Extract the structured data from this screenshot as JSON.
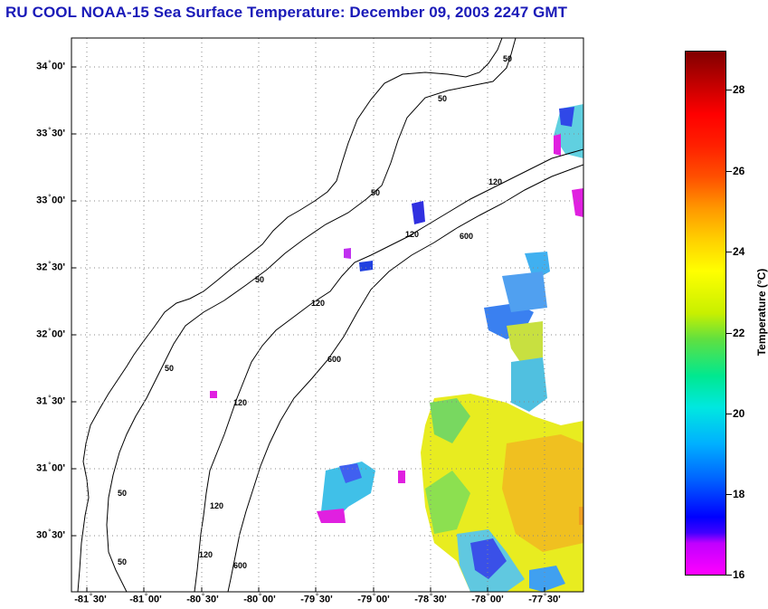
{
  "title": "RU COOL  NOAA-15  Sea Surface Temperature:  December 09, 2003 2247 GMT",
  "lat_labels": [
    {
      "deg": "34",
      "min": "00'"
    },
    {
      "deg": "33",
      "min": "30'"
    },
    {
      "deg": "33",
      "min": "00'"
    },
    {
      "deg": "32",
      "min": "30'"
    },
    {
      "deg": "32",
      "min": "00'"
    },
    {
      "deg": "31",
      "min": "30'"
    },
    {
      "deg": "31",
      "min": "00'"
    },
    {
      "deg": "30",
      "min": "30'"
    }
  ],
  "lon_labels": [
    {
      "deg": "-81",
      "min": "30'"
    },
    {
      "deg": "-81",
      "min": "00'"
    },
    {
      "deg": "-80",
      "min": "30'"
    },
    {
      "deg": "-80",
      "min": "00'"
    },
    {
      "deg": "-79",
      "min": "30'"
    },
    {
      "deg": "-79",
      "min": "00'"
    },
    {
      "deg": "-78",
      "min": "30'"
    },
    {
      "deg": "-78",
      "min": "00'"
    },
    {
      "deg": "-77",
      "min": "30'"
    }
  ],
  "isobath_labels": [
    "50",
    "120",
    "600"
  ],
  "colorbar": {
    "title": "Temperature (°C)",
    "ticks": [
      "28",
      "26",
      "24",
      "22",
      "20",
      "18",
      "16"
    ],
    "range": [
      16,
      29
    ]
  },
  "colors": {
    "title": "#1a1ab8",
    "grid": "#888888",
    "contour": "#000000"
  }
}
